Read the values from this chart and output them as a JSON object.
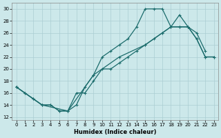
{
  "xlabel": "Humidex (Indice chaleur)",
  "xlim": [
    -0.5,
    23.5
  ],
  "ylim": [
    11.5,
    31
  ],
  "xticks": [
    0,
    1,
    2,
    3,
    4,
    5,
    6,
    7,
    8,
    9,
    10,
    11,
    12,
    13,
    14,
    15,
    16,
    17,
    18,
    19,
    20,
    21,
    22,
    23
  ],
  "yticks": [
    12,
    14,
    16,
    18,
    20,
    22,
    24,
    26,
    28,
    30
  ],
  "bg_color": "#cce8ea",
  "grid_color": "#aacdd2",
  "line_color": "#1a6b6b",
  "line1_x": [
    0,
    1,
    2,
    3,
    4,
    5,
    6,
    7,
    8,
    9,
    10,
    11,
    12,
    13,
    14,
    15,
    16,
    17,
    18,
    19,
    20,
    21,
    22
  ],
  "line1_y": [
    17,
    16,
    15,
    14,
    14,
    13,
    13,
    14,
    17,
    19,
    22,
    23,
    24,
    25,
    27,
    30,
    30,
    30,
    27,
    29,
    27,
    26,
    23
  ],
  "line2_x": [
    0,
    3,
    6,
    9,
    12,
    15,
    17,
    18,
    19,
    20,
    21,
    22,
    23
  ],
  "line2_y": [
    17,
    14,
    13,
    19,
    22,
    24,
    26,
    27,
    27,
    27,
    25,
    22,
    22
  ],
  "line3_x": [
    0,
    1,
    2,
    3,
    4,
    5,
    6,
    7,
    8,
    9,
    10,
    11,
    12,
    13,
    14,
    15,
    16,
    17,
    18,
    19,
    20,
    21,
    22,
    23
  ],
  "line3_y": [
    17,
    16,
    15,
    14,
    14,
    13,
    13,
    16,
    16,
    18,
    20,
    20,
    21,
    22,
    23,
    24,
    25,
    26,
    27,
    27,
    27,
    25,
    22,
    22
  ]
}
